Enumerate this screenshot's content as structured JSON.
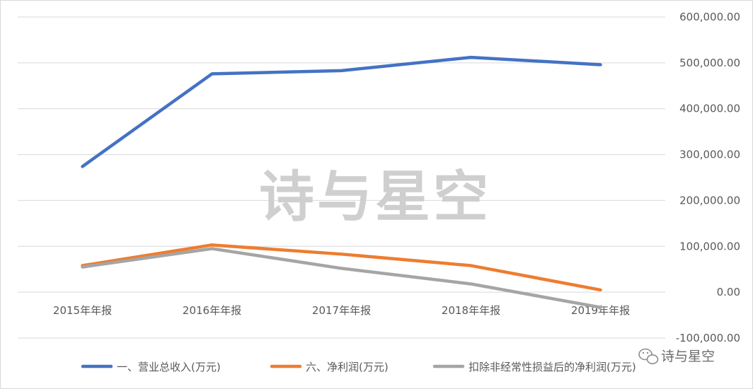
{
  "chart_data": {
    "type": "line",
    "categories": [
      "2015年年报",
      "2016年年报",
      "2017年年报",
      "2018年年报",
      "2019年年报"
    ],
    "series": [
      {
        "name": "一、营业总收入(万元)",
        "color": "#4472C4",
        "values": [
          274000,
          476000,
          483000,
          512000,
          496000
        ]
      },
      {
        "name": "六、净利润(万元)",
        "color": "#ED7D31",
        "values": [
          58000,
          103000,
          83000,
          58000,
          5000
        ]
      },
      {
        "name": "扣除非经常性损益后的净利润(万元)",
        "color": "#A5A5A5",
        "values": [
          55000,
          95000,
          52000,
          18000,
          -33000
        ]
      }
    ],
    "ylim": [
      -100000,
      600000
    ],
    "yticks": [
      "600,000.00",
      "500,000.00",
      "400,000.00",
      "300,000.00",
      "200,000.00",
      "100,000.00",
      "0.00",
      "-100,000.00"
    ],
    "ytick_values": [
      600000,
      500000,
      400000,
      300000,
      200000,
      100000,
      0,
      -100000
    ],
    "grid": true,
    "legend_position": "bottom",
    "y_axis_side": "right"
  },
  "watermark": {
    "text": "诗与星空",
    "badge_text": "诗与星空",
    "badge_icon": "wechat-icon"
  }
}
